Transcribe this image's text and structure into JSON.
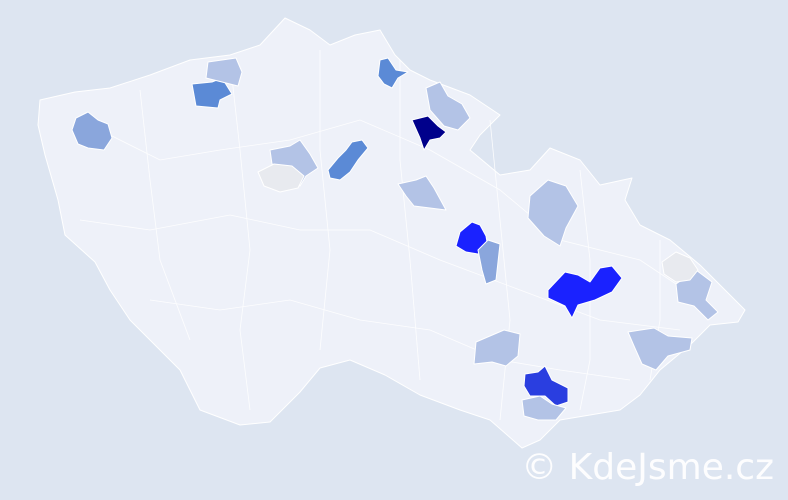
{
  "map": {
    "background_color": "#dde5f1",
    "country_fill": "#eef1f9",
    "border_color": "#ffffff",
    "palette": {
      "level_0": "#e8eaef",
      "level_1": "#b3c3e6",
      "level_2": "#8aa6dc",
      "level_3": "#5b8ad6",
      "level_4": "#2a3ee0",
      "level_5": "#1a22ff",
      "level_6": "#00008b"
    }
  },
  "watermark": {
    "text": "© KdeJsme.cz"
  }
}
